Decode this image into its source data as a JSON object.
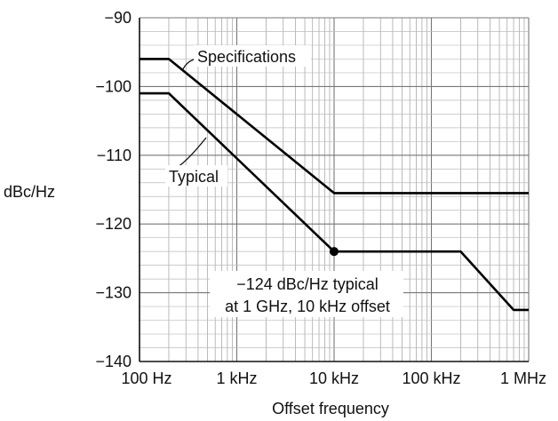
{
  "chart_data": {
    "type": "line",
    "title": "",
    "xlabel": "Offset frequency",
    "ylabel": "dBc/Hz",
    "x_scale": "log",
    "xlim_hz": [
      100,
      1000000
    ],
    "ylim": [
      -140,
      -90
    ],
    "grid": true,
    "x_ticks": [
      {
        "value": 100,
        "label": "100 Hz"
      },
      {
        "value": 1000,
        "label": "1 kHz"
      },
      {
        "value": 10000,
        "label": "10 kHz"
      },
      {
        "value": 100000,
        "label": "100 kHz"
      },
      {
        "value": 1000000,
        "label": "1 MHz"
      }
    ],
    "y_ticks": [
      {
        "value": -90,
        "label": "−90"
      },
      {
        "value": -100,
        "label": "−100"
      },
      {
        "value": -110,
        "label": "−110"
      },
      {
        "value": -120,
        "label": "−120"
      },
      {
        "value": -130,
        "label": "−130"
      },
      {
        "value": -140,
        "label": "−140"
      }
    ],
    "series": [
      {
        "name": "Specifications",
        "points": [
          [
            100,
            -96
          ],
          [
            200,
            -96
          ],
          [
            10000,
            -115.5
          ],
          [
            1000000,
            -115.5
          ]
        ]
      },
      {
        "name": "Typical",
        "points": [
          [
            100,
            -101
          ],
          [
            200,
            -101
          ],
          [
            10000,
            -124
          ],
          [
            200000,
            -124
          ],
          [
            700000,
            -132.5
          ],
          [
            1000000,
            -132.5
          ]
        ]
      }
    ],
    "marker": {
      "x": 10000,
      "y": -124
    },
    "annotations": {
      "line1": "−124 dBc/Hz typical",
      "line2": "at 1 GHz, 10 kHz offset"
    }
  }
}
